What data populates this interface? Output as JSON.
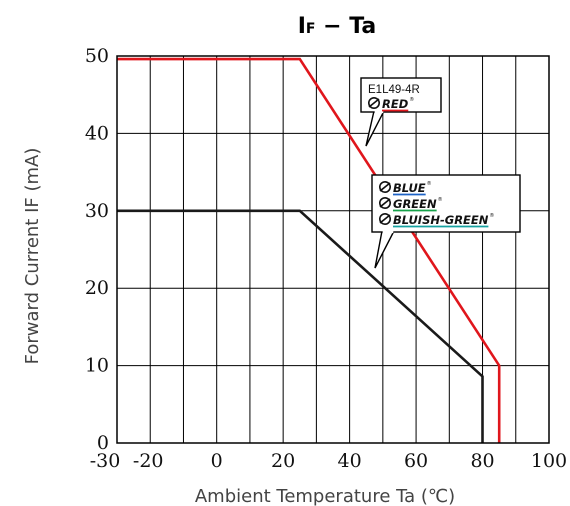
{
  "chart_data": {
    "type": "line",
    "title_main": "I",
    "title_sub": "F",
    "title_rest": " − Ta",
    "xlabel": "Ambient Temperature  Ta (℃)",
    "ylabel": "Forward Current  IF (mA)",
    "xlim": [
      -30,
      100
    ],
    "ylim": [
      0,
      50
    ],
    "x_tick_labels": [
      "-30",
      "-20",
      "0",
      "20",
      "40",
      "60",
      "80",
      "100"
    ],
    "x_tick_values": [
      -30,
      -20,
      0,
      20,
      40,
      60,
      80,
      100
    ],
    "y_tick_labels": [
      "0",
      "10",
      "20",
      "30",
      "40",
      "50"
    ],
    "y_tick_values": [
      0,
      10,
      20,
      30,
      40,
      50
    ],
    "x_grid": [
      -30,
      -20,
      -10,
      0,
      10,
      20,
      30,
      40,
      50,
      60,
      70,
      80,
      90,
      100
    ],
    "y_grid": [
      0,
      10,
      20,
      30,
      40,
      50
    ],
    "grid": true,
    "series": [
      {
        "color": "#e0161c",
        "points": [
          [
            -30,
            49.6
          ],
          [
            25,
            49.6
          ],
          [
            85,
            10
          ],
          [
            85,
            0
          ]
        ]
      },
      {
        "color": "#1a1a1a",
        "points": [
          [
            -30,
            30
          ],
          [
            25,
            30
          ],
          [
            80,
            8.6
          ],
          [
            80,
            0
          ]
        ]
      }
    ],
    "annotations": [
      {
        "lines": [
          "E1L49-4R"
        ],
        "brands": [
          {
            "text": "RED",
            "underline": "#e0161c"
          }
        ]
      },
      {
        "lines": [],
        "brands": [
          {
            "text": "BLUE",
            "underline": "#1e63c6"
          },
          {
            "text": "GREEN",
            "underline": "#17a24a"
          },
          {
            "text": "BLUISH-GREEN",
            "underline": "#17a2a0"
          }
        ]
      }
    ]
  }
}
